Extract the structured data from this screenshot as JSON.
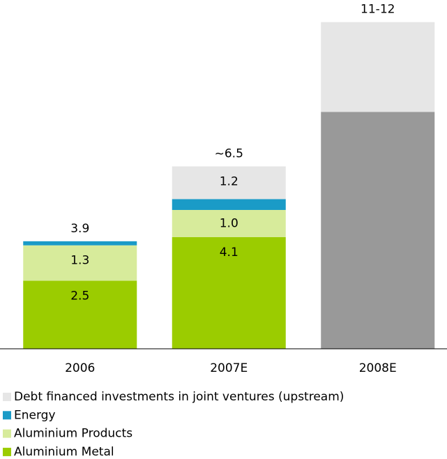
{
  "chart_data": {
    "type": "stacked_bar",
    "categories": [
      "2006",
      "2007E",
      "2008E"
    ],
    "total_labels": [
      "3.9",
      "~6.5",
      "11-12"
    ],
    "ylim": [
      0,
      12.3
    ],
    "series": [
      {
        "name": "Aluminium Metal",
        "color": "#9bcc00",
        "values": [
          2.5,
          4.1,
          null
        ],
        "value_labels": [
          "2.5",
          "4.1",
          null
        ]
      },
      {
        "color": "#999999",
        "values": [
          null,
          null,
          8.7
        ]
      },
      {
        "name": "Aluminium Products",
        "color": "#d7eb9b",
        "values": [
          1.3,
          1.0,
          null
        ],
        "value_labels": [
          "1.3",
          "1.0",
          null
        ]
      },
      {
        "name": "Energy",
        "color": "#1a9bc7",
        "values": [
          0.15,
          0.4,
          null
        ]
      },
      {
        "name": "Debt financed investments in joint ventures (upstream)",
        "color": "#e6e6e6",
        "values": [
          null,
          1.2,
          3.3
        ],
        "value_labels": [
          null,
          "1.2",
          null
        ]
      }
    ]
  }
}
